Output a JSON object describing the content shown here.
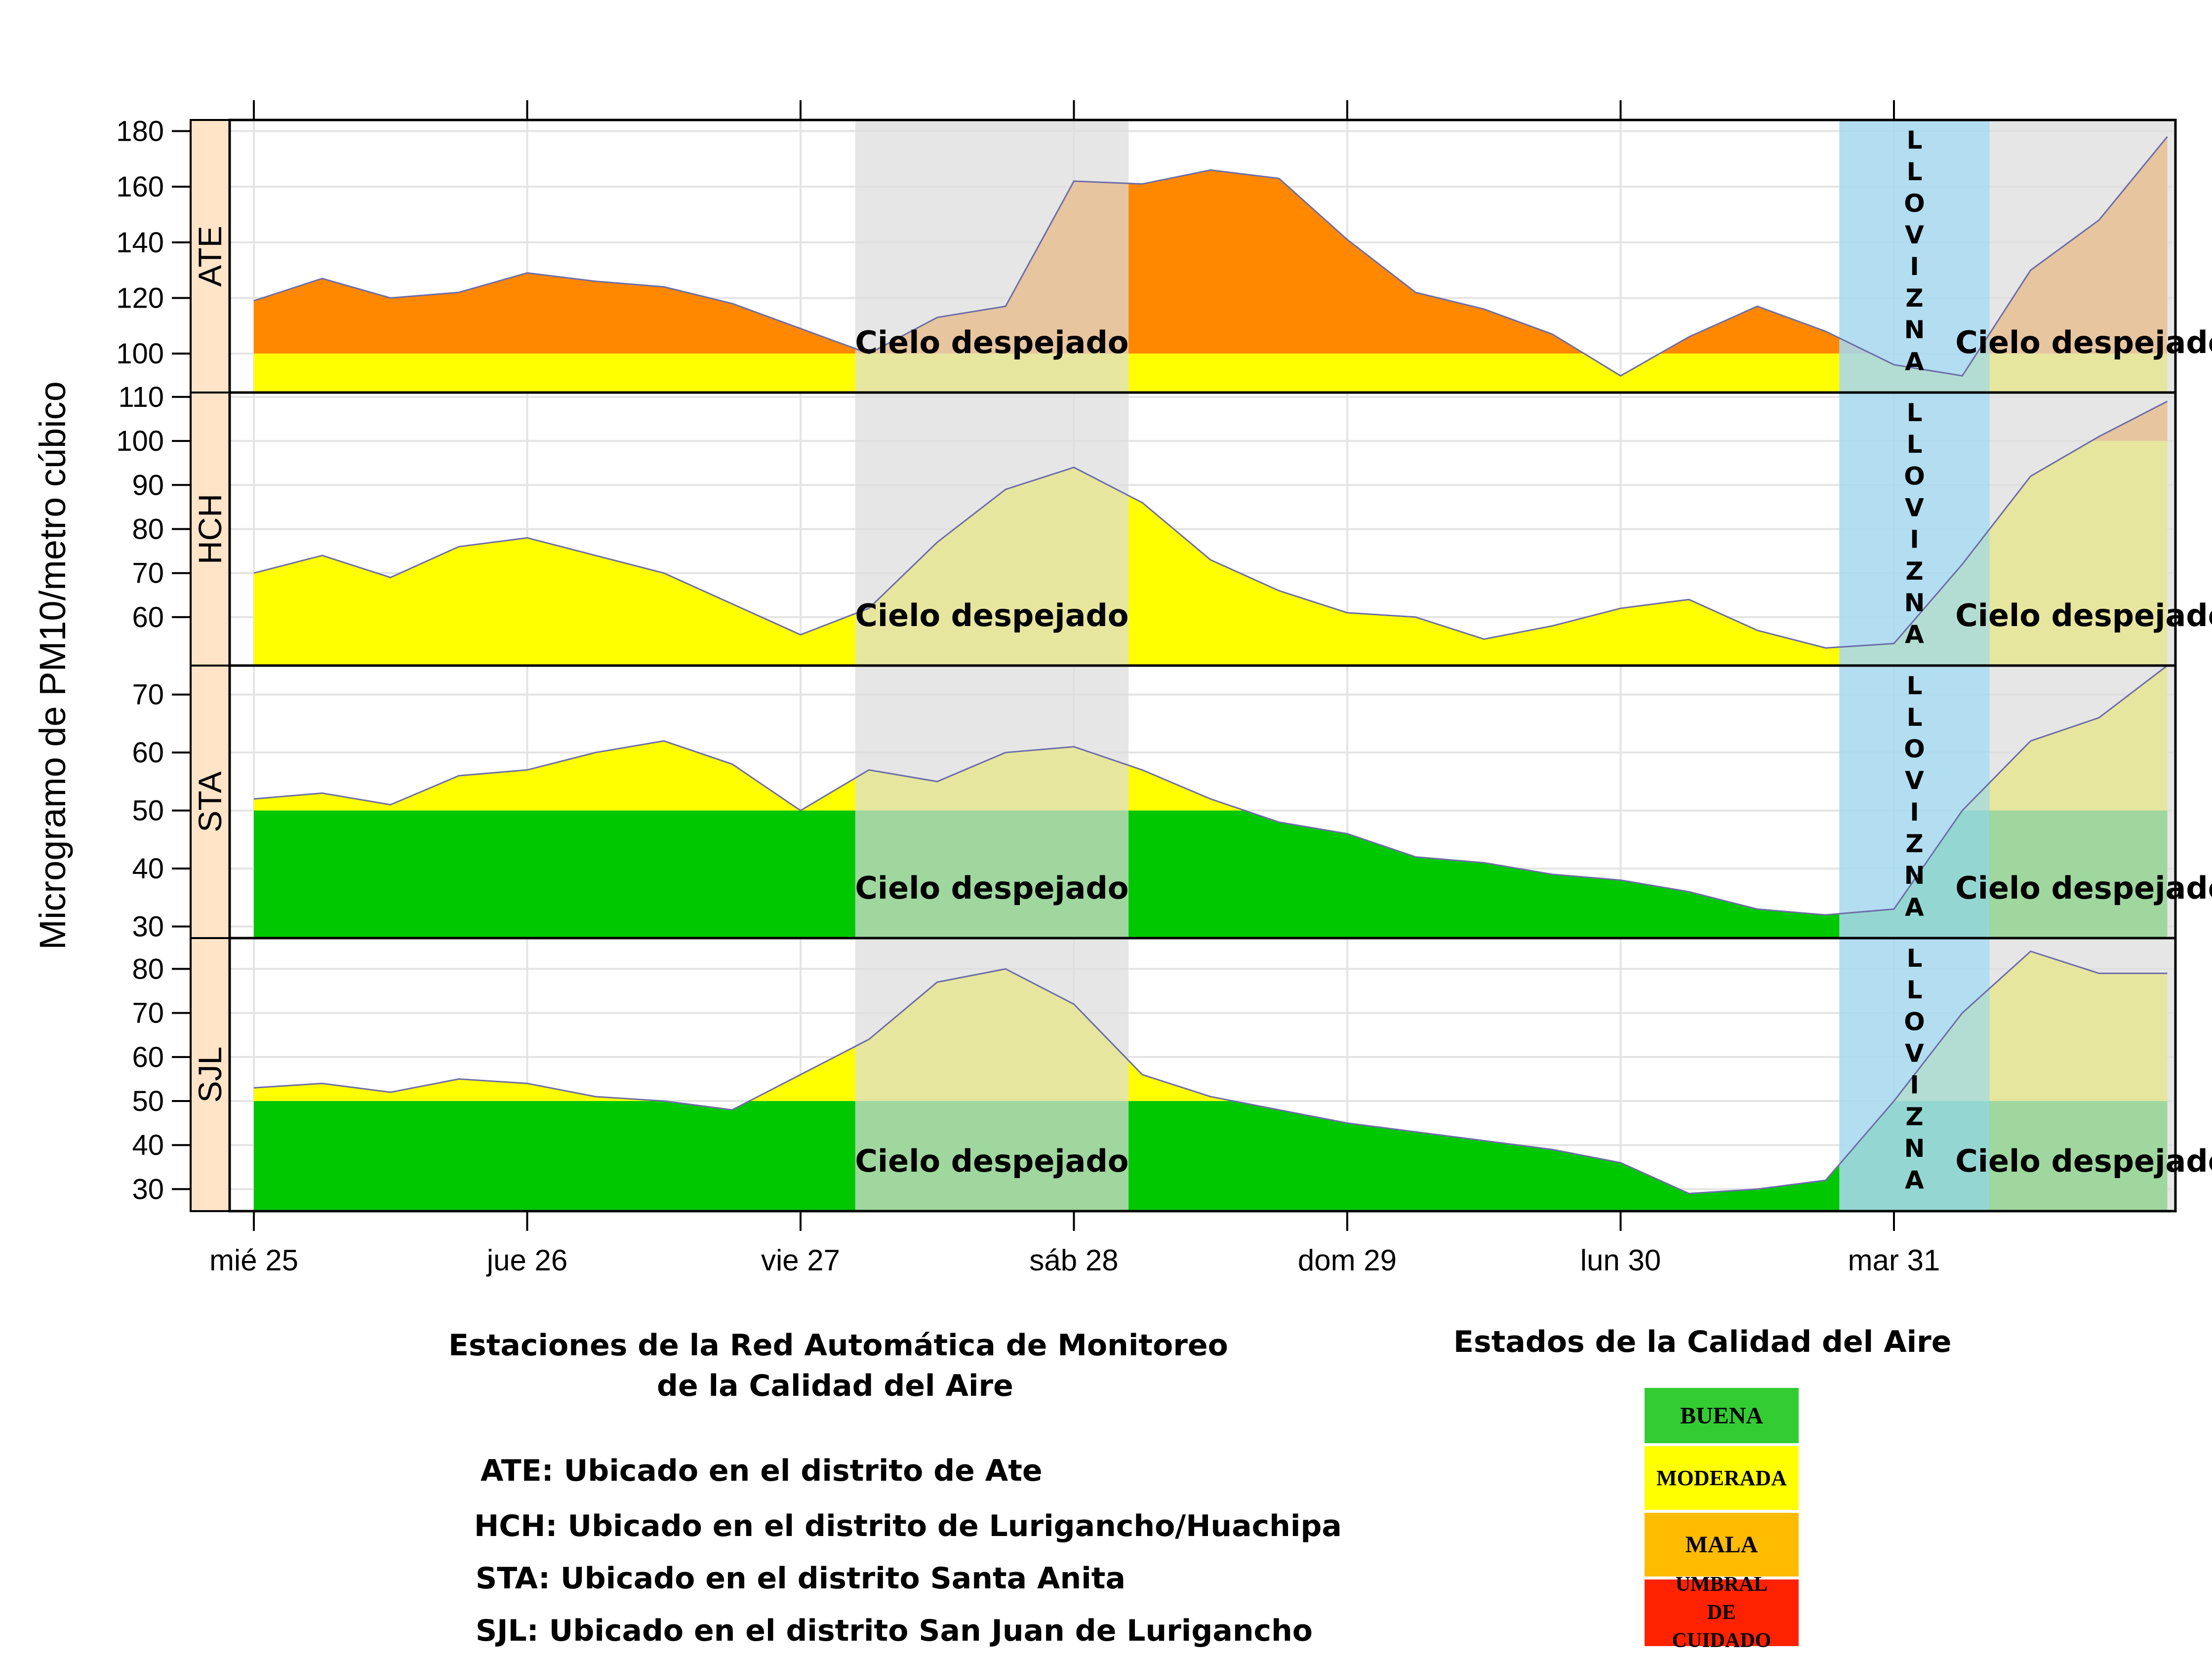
{
  "chart_data": {
    "type": "area",
    "ylabel": "Microgramo de PM10/metro cúbico",
    "x_labels": [
      "mié 25",
      "jue 26",
      "vie 27",
      "sáb 28",
      "dom 29",
      "lun 30",
      "mar 31"
    ],
    "x_range": [
      0,
      7
    ],
    "shaded_periods": [
      {
        "start": 2.2,
        "end": 3.2,
        "label": "Cielo despejado",
        "color": "#dcdcdc"
      },
      {
        "start": 5.8,
        "end": 6.35,
        "label": "LLOVIZNA",
        "color": "#a9d8ef"
      },
      {
        "start": 6.35,
        "end": 7.1,
        "label": "Cielo despejado",
        "color": "#dcdcdc"
      }
    ],
    "panels": [
      {
        "name": "ATE",
        "ylim": [
          86,
          184
        ],
        "yticks": [
          100,
          120,
          140,
          160,
          180
        ],
        "thresholds": [
          {
            "value": 100,
            "below": "#ffff00",
            "above": "#ff8800"
          }
        ],
        "x": [
          0,
          0.25,
          0.5,
          0.75,
          1,
          1.25,
          1.5,
          1.75,
          2,
          2.25,
          2.5,
          2.75,
          3,
          3.25,
          3.5,
          3.75,
          4,
          4.25,
          4.5,
          4.75,
          5,
          5.25,
          5.5,
          5.75,
          6,
          6.25,
          6.5,
          6.75,
          7
        ],
        "values": [
          119,
          127,
          120,
          122,
          129,
          126,
          124,
          118,
          109,
          100,
          113,
          117,
          162,
          161,
          166,
          163,
          141,
          122,
          116,
          107,
          92,
          106,
          117,
          108,
          96,
          92,
          130,
          148,
          178
        ]
      },
      {
        "name": "HCH",
        "ylim": [
          49,
          111
        ],
        "yticks": [
          60,
          70,
          80,
          90,
          100,
          110
        ],
        "thresholds": [
          {
            "value": 100,
            "below": "#ffff00",
            "above": "#ff8800"
          }
        ],
        "x": [
          0,
          0.25,
          0.5,
          0.75,
          1,
          1.25,
          1.5,
          1.75,
          2,
          2.25,
          2.5,
          2.75,
          3,
          3.25,
          3.5,
          3.75,
          4,
          4.25,
          4.5,
          4.75,
          5,
          5.25,
          5.5,
          5.75,
          6,
          6.25,
          6.5,
          6.75,
          7
        ],
        "values": [
          70,
          74,
          69,
          76,
          78,
          74,
          70,
          63,
          56,
          62,
          77,
          89,
          94,
          86,
          73,
          66,
          61,
          60,
          55,
          58,
          62,
          64,
          57,
          53,
          54,
          72,
          92,
          101,
          109
        ]
      },
      {
        "name": "STA",
        "ylim": [
          28,
          75
        ],
        "yticks": [
          30,
          40,
          50,
          60,
          70
        ],
        "thresholds": [
          {
            "value": 50,
            "below": "#00c800",
            "above": "#ffff00"
          }
        ],
        "x": [
          0,
          0.25,
          0.5,
          0.75,
          1,
          1.25,
          1.5,
          1.75,
          2,
          2.25,
          2.5,
          2.75,
          3,
          3.25,
          3.5,
          3.75,
          4,
          4.25,
          4.5,
          4.75,
          5,
          5.25,
          5.5,
          5.75,
          6,
          6.25,
          6.5,
          6.75,
          7
        ],
        "values": [
          52,
          53,
          51,
          56,
          57,
          60,
          62,
          58,
          50,
          57,
          55,
          60,
          61,
          57,
          52,
          48,
          46,
          42,
          41,
          39,
          38,
          36,
          33,
          32,
          33,
          50,
          62,
          66,
          75
        ]
      },
      {
        "name": "SJL",
        "ylim": [
          25,
          87
        ],
        "yticks": [
          30,
          40,
          50,
          60,
          70,
          80
        ],
        "thresholds": [
          {
            "value": 50,
            "below": "#00c800",
            "above": "#ffff00"
          }
        ],
        "x": [
          0,
          0.25,
          0.5,
          0.75,
          1,
          1.25,
          1.5,
          1.75,
          2,
          2.25,
          2.5,
          2.75,
          3,
          3.25,
          3.5,
          3.75,
          4,
          4.25,
          4.5,
          4.75,
          5,
          5.25,
          5.5,
          5.75,
          6,
          6.25,
          6.5,
          6.75,
          7
        ],
        "values": [
          53,
          54,
          52,
          55,
          54,
          51,
          50,
          48,
          56,
          64,
          77,
          80,
          72,
          56,
          51,
          48,
          45,
          43,
          41,
          39,
          36,
          29,
          30,
          32,
          50,
          70,
          84,
          79,
          79
        ]
      }
    ]
  },
  "info": {
    "title_line1": "Estaciones de la Red Automática de Monitoreo",
    "title_line2": "de la Calidad del Aire",
    "stations": [
      "ATE: Ubicado en el distrito de Ate",
      "HCH: Ubicado en el distrito de Lurigancho/Huachipa",
      "STA: Ubicado en el distrito Santa Anita",
      "SJL: Ubicado en el distrito San Juan de Lurigancho"
    ]
  },
  "legend": {
    "title": "Estados de la Calidad del Aire",
    "items": [
      {
        "label": "BUENA",
        "color": "#33cc33"
      },
      {
        "label": "MODERADA",
        "color": "#ffff00"
      },
      {
        "label": "MALA",
        "color": "#ffbb00"
      },
      {
        "label": "UMBRAL DE CUIDADO",
        "color": "#ff2200"
      }
    ]
  }
}
